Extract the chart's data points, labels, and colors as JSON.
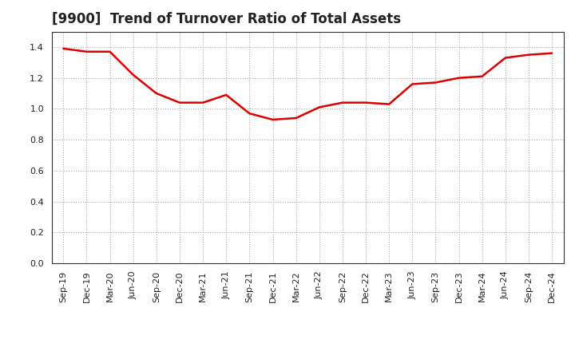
{
  "title": "[9900]  Trend of Turnover Ratio of Total Assets",
  "x_labels": [
    "Sep-19",
    "Dec-19",
    "Mar-20",
    "Jun-20",
    "Sep-20",
    "Dec-20",
    "Mar-21",
    "Jun-21",
    "Sep-21",
    "Dec-21",
    "Mar-22",
    "Jun-22",
    "Sep-22",
    "Dec-22",
    "Mar-23",
    "Jun-23",
    "Sep-23",
    "Dec-23",
    "Mar-24",
    "Jun-24",
    "Sep-24",
    "Dec-24"
  ],
  "y_values": [
    1.39,
    1.37,
    1.37,
    1.22,
    1.1,
    1.04,
    1.04,
    1.09,
    0.97,
    0.93,
    0.94,
    1.01,
    1.04,
    1.04,
    1.03,
    1.16,
    1.17,
    1.2,
    1.21,
    1.33,
    1.35,
    1.36
  ],
  "line_color": "#dd0000",
  "line_width": 1.8,
  "ylim": [
    0.0,
    1.5
  ],
  "yticks": [
    0.0,
    0.2,
    0.4,
    0.6,
    0.8,
    1.0,
    1.2,
    1.4
  ],
  "background_color": "#ffffff",
  "grid_color": "#aaaaaa",
  "title_fontsize": 12,
  "tick_fontsize": 8,
  "spine_color": "#333333"
}
